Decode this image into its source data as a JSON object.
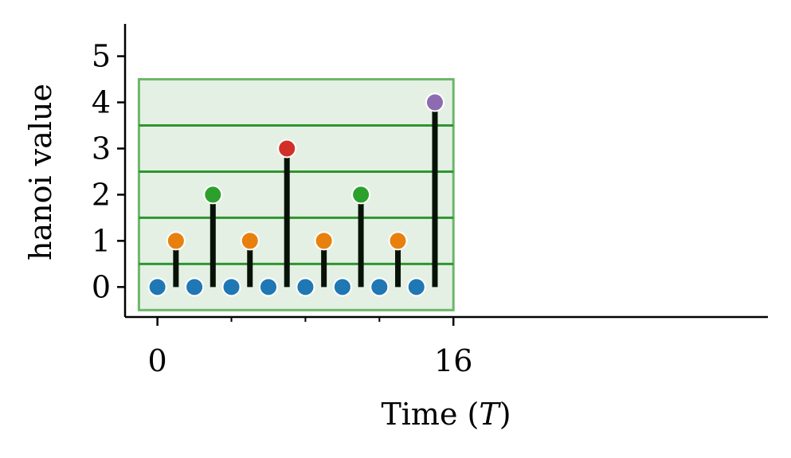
{
  "chart_data": {
    "type": "scatter",
    "xlabel_text": "Time (",
    "xlabel_var": "T",
    "xlabel_close": ")",
    "ylabel": "hanoi value",
    "xlim": [
      -1.75,
      33
    ],
    "ylim": [
      -0.65,
      5.7
    ],
    "x_ticks": [
      {
        "value": 0,
        "label": "0"
      },
      {
        "value": 16,
        "label": "16"
      }
    ],
    "x_minor_ticks": [
      4,
      8,
      12
    ],
    "y_ticks": [
      {
        "value": 0,
        "label": "0"
      },
      {
        "value": 1,
        "label": "1"
      },
      {
        "value": 2,
        "label": "2"
      },
      {
        "value": 3,
        "label": "3"
      },
      {
        "value": 4,
        "label": "4"
      },
      {
        "value": 5,
        "label": "5"
      }
    ],
    "points": [
      {
        "x": 0,
        "y": 0
      },
      {
        "x": 1,
        "y": 1
      },
      {
        "x": 2,
        "y": 0
      },
      {
        "x": 3,
        "y": 2
      },
      {
        "x": 4,
        "y": 0
      },
      {
        "x": 5,
        "y": 1
      },
      {
        "x": 6,
        "y": 0
      },
      {
        "x": 7,
        "y": 3
      },
      {
        "x": 8,
        "y": 0
      },
      {
        "x": 9,
        "y": 1
      },
      {
        "x": 10,
        "y": 0
      },
      {
        "x": 11,
        "y": 2
      },
      {
        "x": 12,
        "y": 0
      },
      {
        "x": 13,
        "y": 1
      },
      {
        "x": 14,
        "y": 0
      },
      {
        "x": 15,
        "y": 4
      }
    ],
    "level_colors": [
      "#1f77b4",
      "#e8800e",
      "#2ca02c",
      "#d03027",
      "#8c6bb1"
    ],
    "stem_color": "#061206",
    "box": {
      "x_range": [
        -1,
        16
      ],
      "y_range": [
        -0.5,
        4.5
      ],
      "fill": "#e5f0e5",
      "edge": "#6ab86a"
    },
    "threshold_lines": [
      0.5,
      1.5,
      2.5,
      3.5
    ],
    "threshold_color": "#2e962e",
    "grid": false
  }
}
